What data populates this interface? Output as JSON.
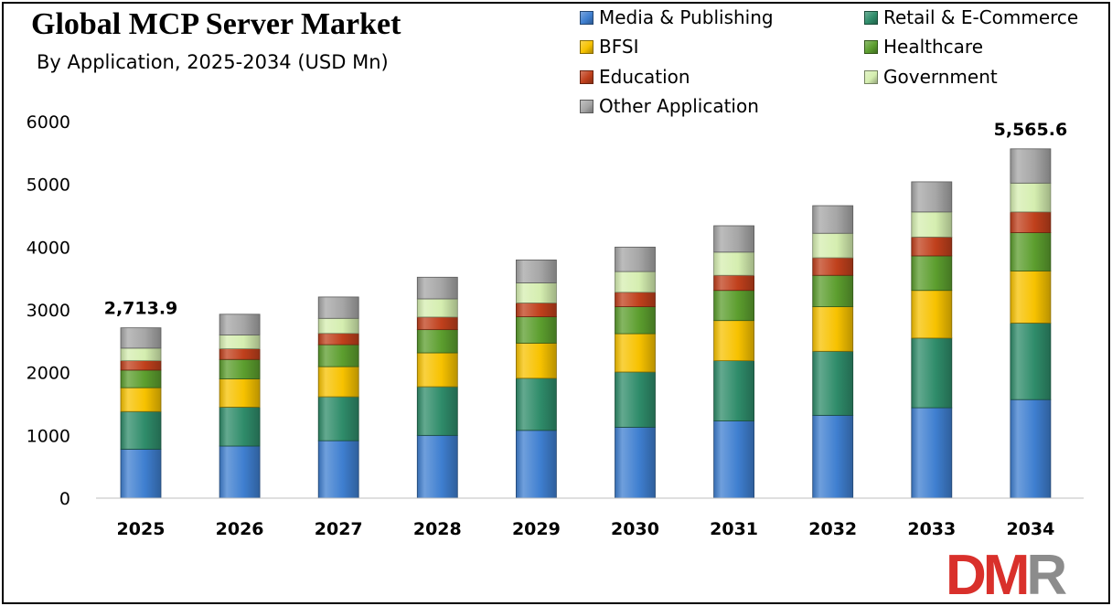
{
  "title": "Global MCP Server Market",
  "subtitle": "By Application, 2025-2034 (USD Mn)",
  "logo_text": "DMR",
  "colors": {
    "logo_red": "#d9302b",
    "logo_gray": "#8c8c8c"
  },
  "chart_data": {
    "type": "bar",
    "stacked": true,
    "categories": [
      "2025",
      "2026",
      "2027",
      "2028",
      "2029",
      "2030",
      "2031",
      "2032",
      "2033",
      "2034"
    ],
    "ylim": [
      0,
      6000
    ],
    "yticks": [
      0,
      1000,
      2000,
      3000,
      4000,
      5000,
      6000
    ],
    "grid": false,
    "legend_position": "top-right",
    "xlabel": "",
    "ylabel": "",
    "series": [
      {
        "name": "Media & Publishing",
        "color": "#3f7fd0",
        "values": [
          780,
          830,
          915,
          1000,
          1080,
          1130,
          1230,
          1320,
          1440,
          1570
        ]
      },
      {
        "name": "Retail & E-Commerce",
        "color": "#2f8c6a",
        "values": [
          600,
          620,
          700,
          775,
          830,
          880,
          960,
          1020,
          1110,
          1220
        ]
      },
      {
        "name": "BFSI",
        "color": "#f7c200",
        "values": [
          380,
          450,
          480,
          540,
          560,
          610,
          640,
          710,
          760,
          830
        ]
      },
      {
        "name": "Healthcare",
        "color": "#5c9e2e",
        "values": [
          280,
          310,
          350,
          370,
          420,
          430,
          480,
          500,
          550,
          610
        ]
      },
      {
        "name": "Education",
        "color": "#c0401c",
        "values": [
          150,
          170,
          180,
          200,
          220,
          230,
          240,
          280,
          300,
          330
        ]
      },
      {
        "name": "Government",
        "color": "#d5eeb0",
        "values": [
          200,
          220,
          240,
          290,
          320,
          330,
          370,
          390,
          400,
          460
        ]
      },
      {
        "name": "Other Application",
        "color": "#a6a6a6",
        "values": [
          323.9,
          330,
          340,
          345,
          365,
          390,
          420,
          440,
          480,
          545.6
        ]
      }
    ],
    "annotations": [
      {
        "category": "2025",
        "text": "2,713.9"
      },
      {
        "category": "2034",
        "text": "5,565.6"
      }
    ]
  }
}
